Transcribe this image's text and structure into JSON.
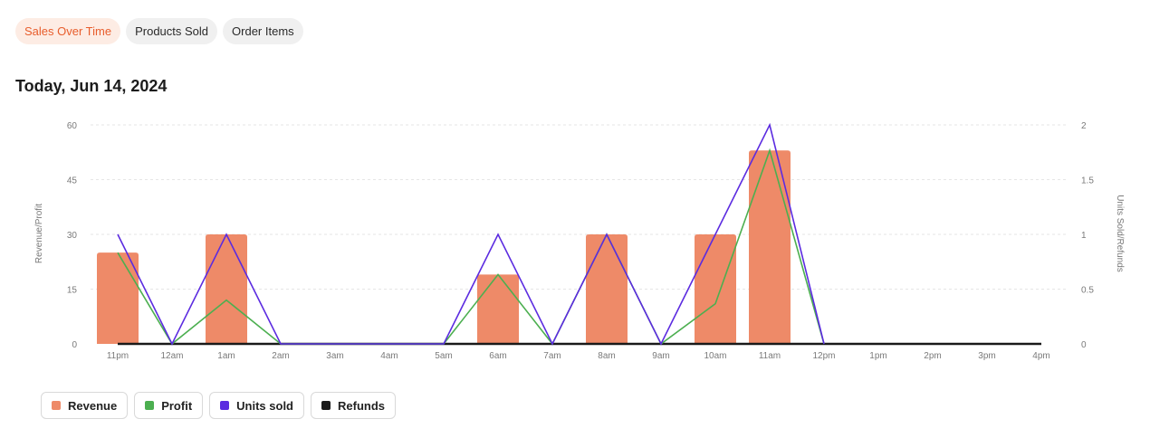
{
  "tabs": [
    {
      "label": "Sales Over Time",
      "active": true
    },
    {
      "label": "Products Sold",
      "active": false
    },
    {
      "label": "Order Items",
      "active": false
    }
  ],
  "date_title": "Today, Jun 14, 2024",
  "legend": [
    {
      "label": "Revenue",
      "color": "#ee8a68"
    },
    {
      "label": "Profit",
      "color": "#4caf50"
    },
    {
      "label": "Units sold",
      "color": "#5b2be0"
    },
    {
      "label": "Refunds",
      "color": "#1a1a1a"
    }
  ],
  "chart_data": {
    "type": "bar",
    "categories": [
      "11pm",
      "12am",
      "1am",
      "2am",
      "3am",
      "4am",
      "5am",
      "6am",
      "7am",
      "8am",
      "9am",
      "10am",
      "11am",
      "12pm",
      "1pm",
      "2pm",
      "3pm",
      "4pm"
    ],
    "ylabel": "Revenue/Profit",
    "y2label": "Units Sold/Refunds",
    "ylim": [
      0,
      60
    ],
    "y2lim": [
      0,
      2
    ],
    "yticks": [
      "0",
      "15",
      "30",
      "45",
      "60"
    ],
    "y2ticks": [
      "0",
      "0.5",
      "1",
      "1.5",
      "2"
    ],
    "grid": true,
    "series": [
      {
        "name": "Revenue",
        "type": "bar",
        "axis": "left",
        "color": "#ee8a68",
        "values": [
          25,
          0,
          30,
          0,
          0,
          0,
          0,
          19,
          0,
          30,
          0,
          30,
          53,
          0,
          0,
          0,
          0,
          0
        ]
      },
      {
        "name": "Profit",
        "type": "line",
        "axis": "left",
        "color": "#4caf50",
        "values": [
          25,
          0,
          12,
          0,
          0,
          0,
          0,
          19,
          0,
          30,
          0,
          11,
          53,
          0,
          null,
          null,
          null,
          null
        ]
      },
      {
        "name": "Units sold",
        "type": "line",
        "axis": "right",
        "color": "#5b2be0",
        "values": [
          1,
          0,
          1,
          0,
          0,
          0,
          0,
          1,
          0,
          1,
          0,
          1,
          2,
          0,
          null,
          null,
          null,
          null
        ]
      },
      {
        "name": "Refunds",
        "type": "line",
        "axis": "right",
        "color": "#1a1a1a",
        "values": [
          0,
          0,
          0,
          0,
          0,
          0,
          0,
          0,
          0,
          0,
          0,
          0,
          0,
          0,
          0,
          0,
          0,
          0
        ]
      }
    ]
  }
}
